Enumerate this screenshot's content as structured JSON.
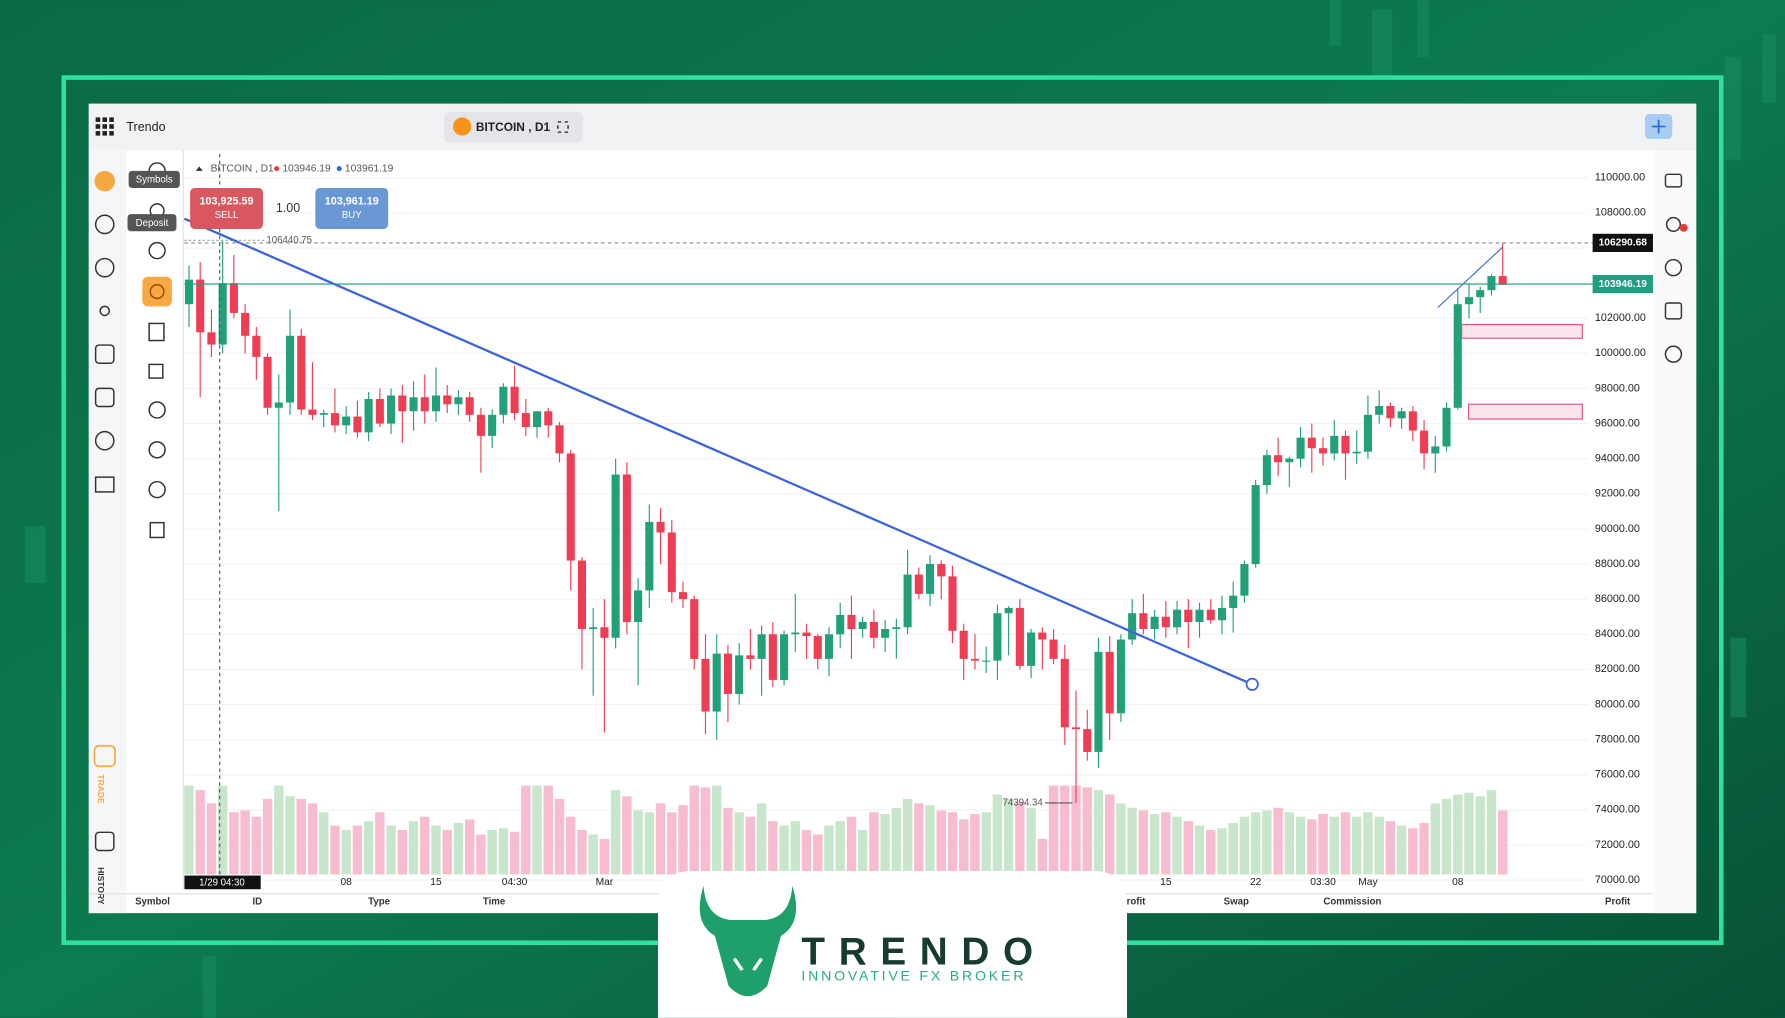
{
  "app": {
    "name": "Trendo",
    "symbol_tab": "BITCOIN , D1"
  },
  "tooltips": [
    "Symbols",
    "Deposit"
  ],
  "sidebar": {
    "trade": "TRADE",
    "history": "HISTORY"
  },
  "trade_panel": {
    "sell_price": "103,925.59",
    "sell": "SELL",
    "lot": "1.00",
    "buy_price": "103,961.19",
    "buy": "BUY"
  },
  "table_headers": [
    "Symbol",
    "ID",
    "Type",
    "Time",
    "Profit",
    "Swap",
    "Commission",
    "Profit"
  ],
  "logo": {
    "name": "TRENDO",
    "tagline": "INNOVATIVE FX BROKER"
  },
  "chart_data": {
    "type": "candlestick",
    "legend_symbol": "BITCOIN , D1",
    "last": 103946.19,
    "ask": 103961.19,
    "cursor_price": 106290.68,
    "cursor_time": "1/29 04:30",
    "high_label": 106440.75,
    "low_label": 74394.34,
    "colors": {
      "up": "#22a07a",
      "down": "#ee3d55",
      "vol_up": "#c8e6cc",
      "vol_down": "#f8bcd0",
      "last": "#1f9e80"
    },
    "ylim": [
      69500,
      111500
    ],
    "yticks": [
      {
        "value": 70000,
        "label": "70000.00"
      },
      {
        "value": 72000,
        "label": "72000.00"
      },
      {
        "value": 74000,
        "label": "74000.00"
      },
      {
        "value": 76000,
        "label": "76000.00"
      },
      {
        "value": 78000,
        "label": "78000.00"
      },
      {
        "value": 80000,
        "label": "80000.00"
      },
      {
        "value": 82000,
        "label": "82000.00"
      },
      {
        "value": 84000,
        "label": "84000.00"
      },
      {
        "value": 86000,
        "label": "86000.00"
      },
      {
        "value": 88000,
        "label": "88000.00"
      },
      {
        "value": 90000,
        "label": "90000.00"
      },
      {
        "value": 92000,
        "label": "92000.00"
      },
      {
        "value": 94000,
        "label": "94000.00"
      },
      {
        "value": 96000,
        "label": "96000.00"
      },
      {
        "value": 98000,
        "label": "98000.00"
      },
      {
        "value": 100000,
        "label": "100000.00"
      },
      {
        "value": 102000,
        "label": "102000.00"
      },
      {
        "value": 104000,
        "label": "104000.00"
      },
      {
        "value": 106000,
        "label": "106000.00"
      },
      {
        "value": 108000,
        "label": "108000.00"
      },
      {
        "value": 110000,
        "label": "110000.00"
      }
    ],
    "categories": [
      null,
      null,
      null,
      null,
      null,
      null,
      null,
      null,
      null,
      null,
      null,
      null,
      null,
      null,
      "08",
      null,
      null,
      null,
      null,
      null,
      null,
      null,
      "15",
      null,
      null,
      null,
      null,
      null,
      null,
      "04:30",
      null,
      null,
      null,
      null,
      null,
      null,
      null,
      "Mar",
      null,
      null,
      null,
      null,
      null,
      null,
      null,
      null,
      null,
      null,
      null,
      null,
      null,
      null,
      null,
      null,
      null,
      null,
      null,
      null,
      null,
      null,
      null,
      null,
      null,
      null,
      null,
      null,
      null,
      null,
      null,
      null,
      null,
      null,
      null,
      null,
      null,
      null,
      null,
      null,
      null,
      null,
      null,
      null,
      null,
      null,
      null,
      null,
      null,
      "15",
      null,
      null,
      null,
      null,
      null,
      null,
      null,
      "22",
      null,
      null,
      null,
      null,
      null,
      "03:30",
      null,
      null,
      null,
      "May",
      null,
      null,
      null,
      null,
      null,
      null,
      null,
      "08",
      null,
      null,
      null,
      null
    ],
    "candles": [
      [
        102800,
        105000,
        101500,
        104200
      ],
      [
        104200,
        105200,
        97500,
        101200
      ],
      [
        101200,
        102500,
        99800,
        100500
      ],
      [
        100500,
        106400,
        100000,
        104000
      ],
      [
        104000,
        105600,
        102000,
        102300
      ],
      [
        102300,
        102800,
        100000,
        101000
      ],
      [
        101000,
        101500,
        98500,
        99800
      ],
      [
        99800,
        100000,
        96500,
        96900
      ],
      [
        96900,
        98800,
        91000,
        97200
      ],
      [
        97200,
        102500,
        96500,
        101000
      ],
      [
        101000,
        101400,
        96500,
        96800
      ],
      [
        96800,
        99500,
        96200,
        96500
      ],
      [
        96500,
        96800,
        95800,
        96600
      ],
      [
        96600,
        98000,
        95500,
        95900
      ],
      [
        95900,
        97000,
        95400,
        96400
      ],
      [
        96400,
        97300,
        95200,
        95500
      ],
      [
        95500,
        97800,
        95000,
        97400
      ],
      [
        97400,
        98000,
        95800,
        96000
      ],
      [
        96000,
        98000,
        95400,
        97600
      ],
      [
        97600,
        98200,
        94900,
        96700
      ],
      [
        96700,
        98400,
        95600,
        97500
      ],
      [
        97500,
        98800,
        96000,
        96700
      ],
      [
        96700,
        99200,
        96100,
        97600
      ],
      [
        97600,
        98200,
        96600,
        97100
      ],
      [
        97100,
        97900,
        96500,
        97500
      ],
      [
        97500,
        97800,
        96100,
        96500
      ],
      [
        96500,
        96900,
        93200,
        95300
      ],
      [
        95300,
        96800,
        94600,
        96500
      ],
      [
        96500,
        98300,
        96000,
        98100
      ],
      [
        98100,
        99300,
        96200,
        96600
      ],
      [
        96600,
        97400,
        95300,
        95800
      ],
      [
        95800,
        96700,
        95200,
        96700
      ],
      [
        96700,
        96900,
        95200,
        95900
      ],
      [
        95900,
        96100,
        93800,
        94300
      ],
      [
        94300,
        94500,
        86500,
        88200
      ],
      [
        88200,
        88400,
        82000,
        84300
      ],
      [
        84300,
        85500,
        80500,
        84400
      ],
      [
        84400,
        86000,
        78400,
        83800
      ],
      [
        83800,
        94000,
        83200,
        93100
      ],
      [
        93100,
        93800,
        84000,
        84700
      ],
      [
        84700,
        87200,
        81100,
        86500
      ],
      [
        86500,
        91400,
        85500,
        90400
      ],
      [
        90400,
        91200,
        88000,
        89800
      ],
      [
        89800,
        90500,
        85800,
        86400
      ],
      [
        86400,
        87000,
        85500,
        86000
      ],
      [
        86000,
        86200,
        82000,
        82600
      ],
      [
        82600,
        84000,
        78300,
        79600
      ],
      [
        79600,
        84000,
        78000,
        82900
      ],
      [
        82900,
        83400,
        79000,
        80600
      ],
      [
        80600,
        83500,
        80000,
        82800
      ],
      [
        82800,
        84300,
        82000,
        82600
      ],
      [
        82600,
        84500,
        80500,
        84000
      ],
      [
        84000,
        84700,
        81000,
        81400
      ],
      [
        81400,
        84200,
        81100,
        84000
      ],
      [
        84000,
        86300,
        83000,
        84100
      ],
      [
        84100,
        84600,
        82600,
        83900
      ],
      [
        83900,
        84000,
        82000,
        82600
      ],
      [
        82600,
        84400,
        81600,
        84000
      ],
      [
        84000,
        85800,
        83200,
        85100
      ],
      [
        85100,
        86200,
        82600,
        84300
      ],
      [
        84300,
        85000,
        83800,
        84700
      ],
      [
        84700,
        85400,
        83200,
        83800
      ],
      [
        83800,
        84800,
        83000,
        84300
      ],
      [
        84300,
        84900,
        82600,
        84400
      ],
      [
        84400,
        88800,
        84000,
        87400
      ],
      [
        87400,
        87800,
        86000,
        86300
      ],
      [
        86300,
        88500,
        85600,
        88000
      ],
      [
        88000,
        88200,
        86000,
        87300
      ],
      [
        87300,
        87900,
        83500,
        84200
      ],
      [
        84200,
        84600,
        81400,
        82600
      ],
      [
        82600,
        84000,
        82000,
        82500
      ],
      [
        82500,
        83300,
        81800,
        82500
      ],
      [
        82500,
        85700,
        81400,
        85200
      ],
      [
        85200,
        85600,
        82800,
        85500
      ],
      [
        85500,
        86000,
        82000,
        82200
      ],
      [
        82200,
        84300,
        81500,
        84100
      ],
      [
        84100,
        84400,
        82000,
        83700
      ],
      [
        83700,
        84300,
        82300,
        82600
      ],
      [
        82600,
        83400,
        77700,
        78700
      ],
      [
        78700,
        80800,
        74400,
        78600
      ],
      [
        78600,
        79700,
        76800,
        77300
      ],
      [
        77300,
        83800,
        76400,
        83000
      ],
      [
        83000,
        83900,
        78000,
        79500
      ],
      [
        79500,
        84000,
        79000,
        83700
      ],
      [
        83700,
        86000,
        83400,
        85200
      ],
      [
        85200,
        86300,
        84000,
        84300
      ],
      [
        84300,
        85400,
        83700,
        85000
      ],
      [
        85000,
        85900,
        83800,
        84400
      ],
      [
        84400,
        85900,
        84000,
        85400
      ],
      [
        85400,
        86000,
        83200,
        84700
      ],
      [
        84700,
        85800,
        83800,
        85400
      ],
      [
        85400,
        86000,
        84600,
        84800
      ],
      [
        84800,
        86200,
        84000,
        85500
      ],
      [
        85500,
        87000,
        84100,
        86200
      ],
      [
        86200,
        88200,
        85800,
        88000
      ],
      [
        88000,
        92800,
        87800,
        92500
      ],
      [
        92500,
        94500,
        92000,
        94200
      ],
      [
        94200,
        95200,
        93000,
        93800
      ],
      [
        93800,
        94100,
        92400,
        94000
      ],
      [
        94000,
        95800,
        93500,
        95200
      ],
      [
        95200,
        96000,
        93200,
        94600
      ],
      [
        94600,
        95200,
        93600,
        94300
      ],
      [
        94300,
        96200,
        93900,
        95300
      ],
      [
        95300,
        95600,
        92800,
        94300
      ],
      [
        94300,
        95600,
        93700,
        94400
      ],
      [
        94400,
        97600,
        94000,
        96500
      ],
      [
        96500,
        97900,
        96000,
        97000
      ],
      [
        97000,
        97200,
        95800,
        96300
      ],
      [
        96300,
        96900,
        95700,
        96700
      ],
      [
        96700,
        97000,
        95000,
        95600
      ],
      [
        95600,
        96200,
        93400,
        94300
      ],
      [
        94300,
        95300,
        93200,
        94700
      ],
      [
        94700,
        97200,
        94400,
        96900
      ],
      [
        96900,
        103700,
        96800,
        102800
      ],
      [
        102800,
        104000,
        102000,
        103200
      ],
      [
        103200,
        103800,
        102300,
        103600
      ],
      [
        103600,
        104500,
        103300,
        104400
      ],
      [
        104400,
        106300,
        103900,
        103900
      ]
    ],
    "volume": [
      100,
      95,
      80,
      100,
      70,
      72,
      65,
      85,
      100,
      88,
      85,
      80,
      70,
      55,
      50,
      55,
      60,
      70,
      55,
      50,
      60,
      65,
      55,
      50,
      58,
      62,
      45,
      50,
      52,
      48,
      100,
      100,
      100,
      85,
      65,
      50,
      45,
      40,
      95,
      88,
      72,
      70,
      80,
      70,
      78,
      100,
      98,
      100,
      75,
      70,
      65,
      80,
      60,
      55,
      60,
      50,
      45,
      55,
      60,
      65,
      50,
      70,
      68,
      75,
      85,
      80,
      78,
      72,
      70,
      62,
      68,
      70,
      90,
      85,
      82,
      75,
      40,
      100,
      100,
      100,
      98,
      95,
      90,
      80,
      75,
      72,
      68,
      70,
      65,
      60,
      55,
      50,
      52,
      58,
      65,
      70,
      72,
      75,
      70,
      65,
      62,
      68,
      65,
      70,
      65,
      70,
      65,
      60,
      55,
      52,
      58,
      80,
      85,
      90,
      92,
      88,
      95,
      72
    ]
  }
}
